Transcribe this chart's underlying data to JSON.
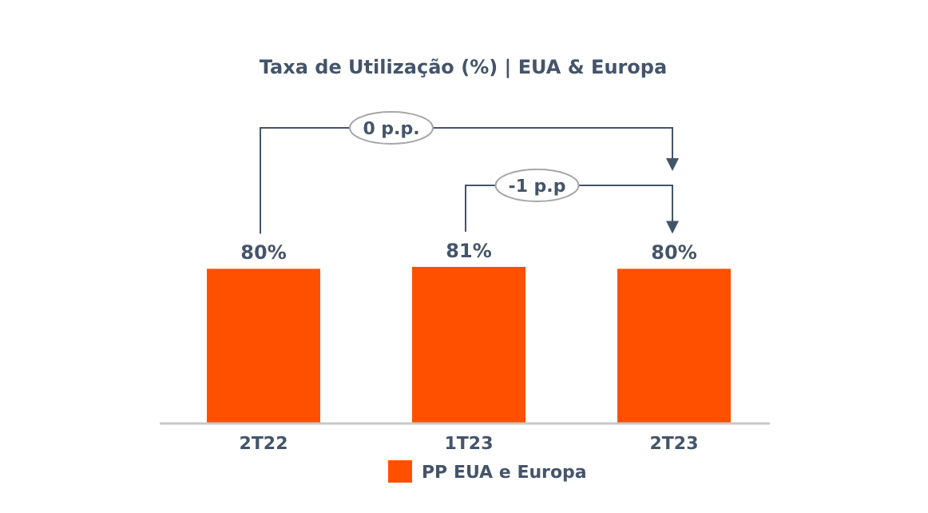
{
  "chart_data": {
    "type": "bar",
    "title": "Taxa de Utilização (%) | EUA & Europa",
    "categories": [
      "2T22",
      "1T23",
      "2T23"
    ],
    "series": [
      {
        "name": "PP EUA e Europa",
        "color": "#ff5000",
        "values": [
          80,
          81,
          80
        ],
        "value_labels": [
          "80%",
          "81%",
          "80%"
        ]
      }
    ],
    "annotations": [
      "0 p.p.",
      "-1 p.p"
    ],
    "legend": "bottom"
  }
}
